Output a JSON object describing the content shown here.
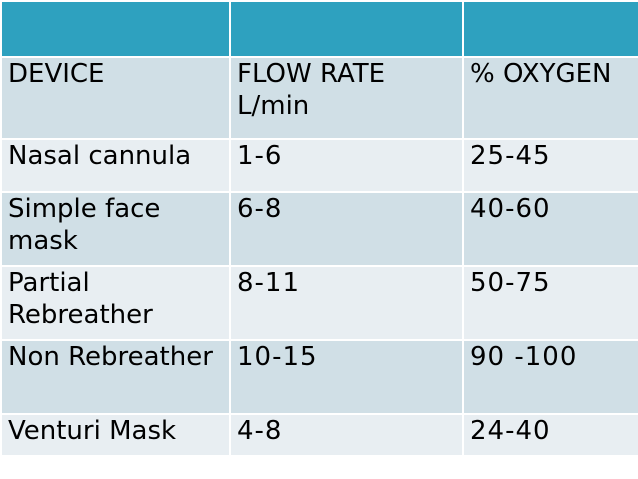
{
  "table": {
    "columns": [
      "DEVICE",
      "FLOW RATE L/min",
      "% OXYGEN"
    ],
    "rows": [
      [
        "Nasal cannula",
        "1-6",
        "25-45"
      ],
      [
        "Simple face mask",
        "6-8",
        "40-60"
      ],
      [
        "Partial Rebreather",
        "8-11",
        "50-75"
      ],
      [
        "Non Rebreather",
        "10-15",
        "90 -100"
      ],
      [
        "Venturi Mask",
        "4-8",
        "24-40"
      ]
    ]
  },
  "colors": {
    "header_band": "#2ea1bf",
    "row_dark": "#d0dfe6",
    "row_light": "#e8eef2",
    "grid": "#ffffff"
  }
}
